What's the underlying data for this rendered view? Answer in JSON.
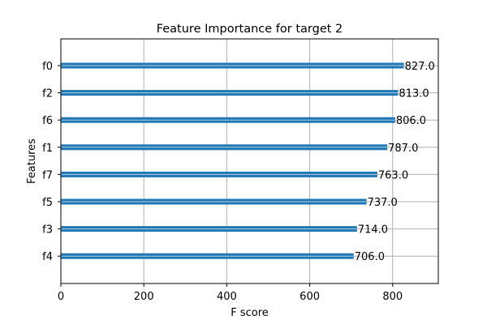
{
  "chart_data": {
    "type": "bar",
    "orientation": "horizontal",
    "title": "Feature Importance for target 2",
    "xlabel": "F score",
    "ylabel": "Features",
    "categories": [
      "f0",
      "f2",
      "f6",
      "f1",
      "f7",
      "f5",
      "f3",
      "f4"
    ],
    "values": [
      827.0,
      813.0,
      806.0,
      787.0,
      763.0,
      737.0,
      714.0,
      706.0
    ],
    "value_labels": [
      "827.0",
      "813.0",
      "806.0",
      "787.0",
      "763.0",
      "737.0",
      "714.0",
      "706.0"
    ],
    "xlim": [
      0,
      910
    ],
    "xticks": [
      0,
      200,
      400,
      600,
      800
    ],
    "xtick_labels": [
      "0",
      "200",
      "400",
      "600",
      "800"
    ],
    "grid": true,
    "legend": "none",
    "bar_color": "#1f77b4",
    "grid_color": "#b0b0b0"
  }
}
